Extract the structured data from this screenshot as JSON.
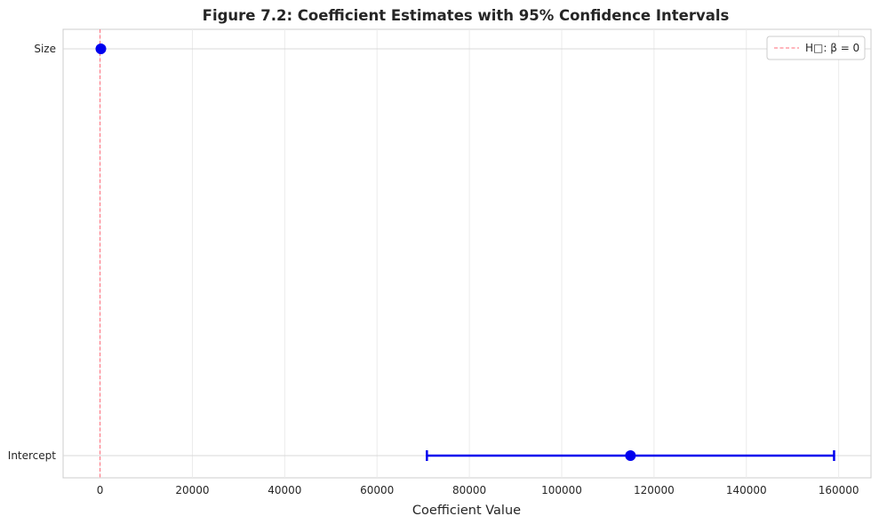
{
  "chart_data": {
    "type": "scatter",
    "title": "Figure 7.2: Coefficient Estimates with 95% Confidence Intervals",
    "xlabel": "Coefficient Value",
    "ylabel": "",
    "categories": [
      "Intercept",
      "Size"
    ],
    "estimates": [
      114900,
      180
    ],
    "ci_lower": [
      70800,
      120
    ],
    "ci_upper": [
      159000,
      240
    ],
    "xlim": [
      -8000,
      167000
    ],
    "xticks": [
      0,
      20000,
      40000,
      60000,
      80000,
      100000,
      120000,
      140000,
      160000
    ],
    "reference_line": {
      "x": 0,
      "label": "H□: β = 0",
      "color": "#ff6b7a",
      "style": "dashed"
    },
    "marker_color": "#0000ee",
    "grid": true,
    "legend_position": "top-right"
  }
}
